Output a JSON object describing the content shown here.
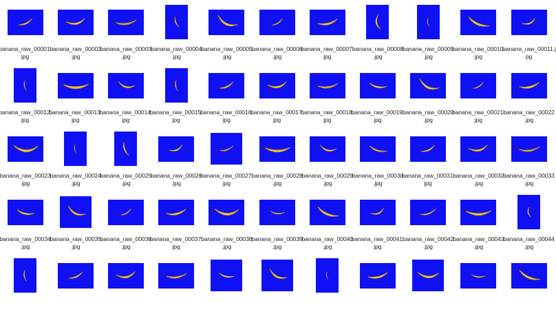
{
  "thumbnail_background": "#1010f5",
  "banana_colors": {
    "skin": "#f2cf3a",
    "shade": "#c99a12",
    "tip": "#3b2a10"
  },
  "icon": "banana-photo-thumbnail",
  "rows": [
    [
      {
        "l1": "banana_raw_00001.",
        "l2": "jpg",
        "orient": "landscape"
      },
      {
        "l1": "banana_raw_00002",
        "l2": ".jpg",
        "orient": "landscape"
      },
      {
        "l1": "banana_raw_00003",
        "l2": ".jpg",
        "orient": "landscape"
      },
      {
        "l1": "banana_raw_00004",
        "l2": ".jpg",
        "orient": "portrait"
      },
      {
        "l1": "banana_raw_00005",
        "l2": ".jpg",
        "orient": "landscape"
      },
      {
        "l1": "banana_raw_00006",
        "l2": ".jpg",
        "orient": "landscape"
      },
      {
        "l1": "banana_raw_00007.",
        "l2": "jpg",
        "orient": "landscape"
      },
      {
        "l1": "banana_raw_00008",
        "l2": ".jpg",
        "orient": "portrait"
      },
      {
        "l1": "banana_raw_00009",
        "l2": ".jpg",
        "orient": "portrait"
      },
      {
        "l1": "banana_raw_00010.",
        "l2": "jpg",
        "orient": "landscape"
      },
      {
        "l1": "banana_raw_00011.j",
        "l2": "pg",
        "orient": "landscape"
      }
    ],
    [
      {
        "l1": "banana_raw_00012.",
        "l2": "jpg",
        "orient": "portrait"
      },
      {
        "l1": "banana_raw_00013.",
        "l2": "jpg",
        "orient": "landscape"
      },
      {
        "l1": "banana_raw_00014.",
        "l2": "jpg",
        "orient": "landscape"
      },
      {
        "l1": "banana_raw_00015.",
        "l2": "jpg",
        "orient": "portrait"
      },
      {
        "l1": "banana_raw_00016.",
        "l2": "jpg",
        "orient": "landscape"
      },
      {
        "l1": "banana_raw_00017.",
        "l2": "jpg",
        "orient": "landscape"
      },
      {
        "l1": "banana_raw_00018.",
        "l2": "jpg",
        "orient": "landscape"
      },
      {
        "l1": "banana_raw_00019.",
        "l2": "jpg",
        "orient": "landscape"
      },
      {
        "l1": "banana_raw_00020",
        "l2": ".jpg",
        "orient": "landscape"
      },
      {
        "l1": "banana_raw_00021.",
        "l2": "jpg",
        "orient": "landscape"
      },
      {
        "l1": "banana_raw_00022",
        "l2": ".jpg",
        "orient": "landscape"
      }
    ],
    [
      {
        "l1": "banana_raw_00023",
        "l2": ".jpg",
        "orient": "landscape"
      },
      {
        "l1": "banana_raw_00024",
        "l2": ".jpg",
        "orient": "portrait"
      },
      {
        "l1": "banana_raw_00025",
        "l2": ".jpg",
        "orient": "portrait"
      },
      {
        "l1": "banana_raw_00026",
        "l2": ".jpg",
        "orient": "landscape"
      },
      {
        "l1": "banana_raw_00027.",
        "l2": "jpg",
        "orient": "square"
      },
      {
        "l1": "banana_raw_00028",
        "l2": ".jpg",
        "orient": "landscape"
      },
      {
        "l1": "banana_raw_00029",
        "l2": ".jpg",
        "orient": "landscape"
      },
      {
        "l1": "banana_raw_00030",
        "l2": ".jpg",
        "orient": "landscape"
      },
      {
        "l1": "banana_raw_00031.",
        "l2": "jpg",
        "orient": "landscape"
      },
      {
        "l1": "banana_raw_00032",
        "l2": ".jpg",
        "orient": "landscape"
      },
      {
        "l1": "banana_raw_00033",
        "l2": ".jpg",
        "orient": "landscape"
      }
    ],
    [
      {
        "l1": "banana_raw_00034",
        "l2": ".jpg",
        "orient": "landscape"
      },
      {
        "l1": "banana_raw_00035",
        "l2": ".jpg",
        "orient": "square"
      },
      {
        "l1": "banana_raw_00036",
        "l2": ".jpg",
        "orient": "landscape"
      },
      {
        "l1": "banana_raw_00037.",
        "l2": "jpg",
        "orient": "landscape"
      },
      {
        "l1": "banana_raw_00038",
        "l2": ".jpg",
        "orient": "landscape"
      },
      {
        "l1": "banana_raw_00039",
        "l2": ".jpg",
        "orient": "landscape"
      },
      {
        "l1": "banana_raw_00040",
        "l2": ".jpg",
        "orient": "landscape"
      },
      {
        "l1": "banana_raw_00041.",
        "l2": "jpg",
        "orient": "landscape"
      },
      {
        "l1": "banana_raw_00042",
        "l2": ".jpg",
        "orient": "landscape"
      },
      {
        "l1": "banana_raw_00043",
        "l2": ".jpg",
        "orient": "landscape"
      },
      {
        "l1": "banana_raw_00044",
        "l2": ".jpg",
        "orient": "portrait"
      }
    ],
    [
      {
        "l1": "",
        "l2": "",
        "orient": "portrait"
      },
      {
        "l1": "",
        "l2": "",
        "orient": "landscape"
      },
      {
        "l1": "",
        "l2": "",
        "orient": "landscape"
      },
      {
        "l1": "",
        "l2": "",
        "orient": "landscape"
      },
      {
        "l1": "",
        "l2": "",
        "orient": "square"
      },
      {
        "l1": "",
        "l2": "",
        "orient": "square"
      },
      {
        "l1": "",
        "l2": "",
        "orient": "portrait"
      },
      {
        "l1": "",
        "l2": "",
        "orient": "landscape"
      },
      {
        "l1": "",
        "l2": "",
        "orient": "square"
      },
      {
        "l1": "",
        "l2": "",
        "orient": "landscape"
      },
      {
        "l1": "",
        "l2": "",
        "orient": "landscape"
      }
    ]
  ]
}
